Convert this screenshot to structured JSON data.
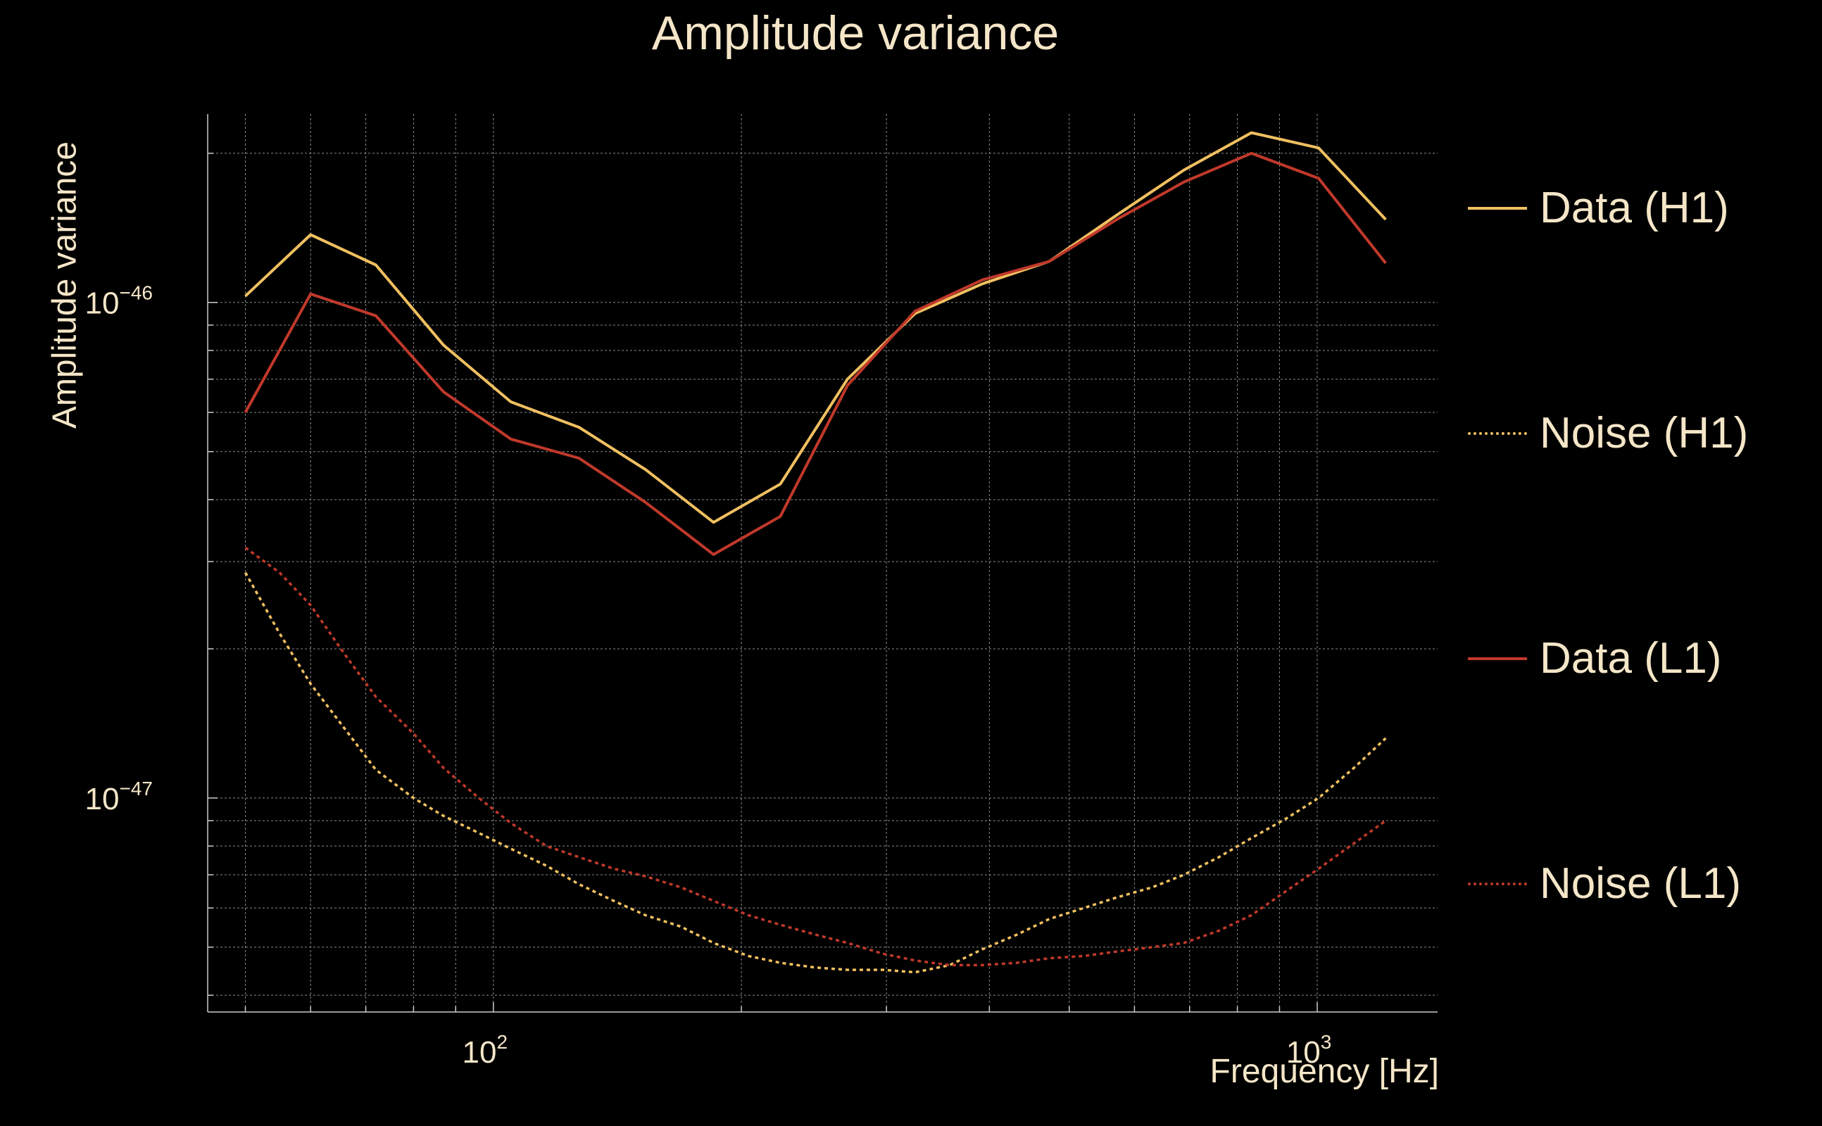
{
  "chart_data": {
    "type": "line",
    "title": "Amplitude variance",
    "xlabel": "Frequency [Hz]",
    "ylabel": "Amplitude variance",
    "x_scale": "log",
    "y_scale": "log",
    "xlim": [
      45,
      1400
    ],
    "ylim": [
      3.7e-48,
      2.4e-46
    ],
    "x_ticks": [
      {
        "value": 100,
        "label": "10",
        "exp": "2"
      },
      {
        "value": 1000,
        "label": "10",
        "exp": "3"
      }
    ],
    "y_ticks": [
      {
        "value": 1e-46,
        "label": "10",
        "exp": "−46"
      },
      {
        "value": 1e-47,
        "label": "10",
        "exp": "−47"
      }
    ],
    "grid": true,
    "legend_position": "right",
    "series": [
      {
        "name": "Data (H1)",
        "color": "#f0c060",
        "dash": "solid",
        "x": [
          50,
          60,
          72,
          87,
          105,
          127,
          153,
          185,
          223,
          269,
          325,
          392,
          473,
          571,
          689,
          832,
          1004,
          1211
        ],
        "y": [
          1.03e-46,
          1.37e-46,
          1.19e-46,
          8.2e-47,
          6.3e-47,
          5.6e-47,
          4.6e-47,
          3.6e-47,
          4.3e-47,
          7e-47,
          9.5e-47,
          1.09e-46,
          1.21e-46,
          1.5e-46,
          1.85e-46,
          2.2e-46,
          2.05e-46,
          1.47e-46
        ]
      },
      {
        "name": "Noise (H1)",
        "color": "#f0c060",
        "dash": "dotted",
        "x": [
          50,
          55,
          60,
          66,
          72,
          80,
          87,
          96,
          105,
          116,
          127,
          140,
          153,
          169,
          185,
          204,
          223,
          246,
          269,
          297,
          325,
          358,
          392,
          432,
          473,
          521,
          571,
          630,
          689,
          760,
          832,
          918,
          1004,
          1108,
          1211
        ],
        "y": [
          2.85e-47,
          2.15e-47,
          1.7e-47,
          1.38e-47,
          1.14e-47,
          1e-47,
          9.2e-48,
          8.5e-48,
          7.9e-48,
          7.3e-48,
          6.7e-48,
          6.2e-48,
          5.8e-48,
          5.5e-48,
          5.1e-48,
          4.8e-48,
          4.65e-48,
          4.55e-48,
          4.5e-48,
          4.5e-48,
          4.45e-48,
          4.6e-48,
          4.95e-48,
          5.3e-48,
          5.7e-48,
          6e-48,
          6.3e-48,
          6.6e-48,
          7e-48,
          7.6e-48,
          8.3e-48,
          9.1e-48,
          1e-47,
          1.15e-47,
          1.32e-47
        ]
      },
      {
        "name": "Data (L1)",
        "color": "#c0392b",
        "dash": "solid",
        "x": [
          50,
          60,
          72,
          87,
          105,
          127,
          153,
          185,
          223,
          269,
          325,
          392,
          473,
          571,
          689,
          832,
          1004,
          1211
        ],
        "y": [
          6e-47,
          1.04e-46,
          9.4e-47,
          6.6e-47,
          5.3e-47,
          4.85e-47,
          3.95e-47,
          3.1e-47,
          3.7e-47,
          6.8e-47,
          9.6e-47,
          1.11e-46,
          1.21e-46,
          1.47e-46,
          1.75e-46,
          2e-46,
          1.78e-46,
          1.2e-46
        ]
      },
      {
        "name": "Noise (L1)",
        "color": "#c0392b",
        "dash": "dotted",
        "x": [
          50,
          55,
          60,
          66,
          72,
          80,
          87,
          96,
          105,
          116,
          127,
          140,
          153,
          169,
          185,
          204,
          223,
          246,
          269,
          297,
          325,
          358,
          392,
          432,
          473,
          521,
          571,
          630,
          689,
          760,
          832,
          918,
          1004,
          1108,
          1211
        ],
        "y": [
          3.2e-47,
          2.85e-47,
          2.45e-47,
          1.95e-47,
          1.6e-47,
          1.35e-47,
          1.15e-47,
          1e-47,
          8.9e-48,
          8e-48,
          7.6e-48,
          7.2e-48,
          6.95e-48,
          6.6e-48,
          6.2e-48,
          5.8e-48,
          5.55e-48,
          5.3e-48,
          5.1e-48,
          4.85e-48,
          4.7e-48,
          4.6e-48,
          4.6e-48,
          4.65e-48,
          4.75e-48,
          4.8e-48,
          4.9e-48,
          5e-48,
          5.1e-48,
          5.4e-48,
          5.8e-48,
          6.5e-48,
          7.2e-48,
          8.1e-48,
          9e-48
        ]
      }
    ]
  }
}
